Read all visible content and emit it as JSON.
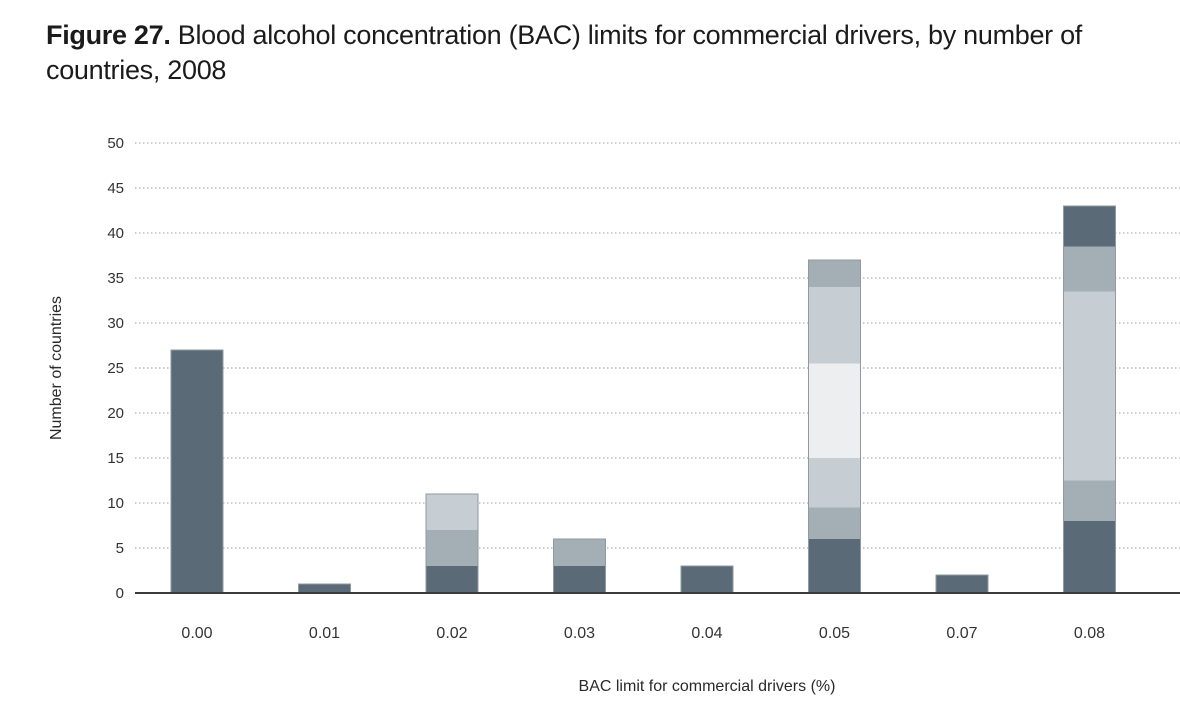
{
  "figure": {
    "label": "Figure 27.",
    "title_line1": " Blood alcohol concentration (BAC) limits for commercial drivers, by number of",
    "title_line2": "countries, 2008"
  },
  "chart_data": {
    "type": "bar",
    "stacked": true,
    "xlabel": "BAC limit for commercial drivers (%)",
    "ylabel": "Number of countries",
    "ylim": [
      0,
      50
    ],
    "yticks": [
      0,
      5,
      10,
      15,
      20,
      25,
      30,
      35,
      40,
      45,
      50
    ],
    "grid": true,
    "legend": "none",
    "categories": [
      "0.00",
      "0.01",
      "0.02",
      "0.03",
      "0.04",
      "0.05",
      "0.07",
      "0.08"
    ],
    "series": [
      {
        "color": "#5a6b77",
        "values": [
          27,
          1,
          3,
          3,
          3,
          6,
          2,
          8
        ]
      },
      {
        "color": "#a3aeb5",
        "values": [
          0,
          0,
          4,
          3,
          0,
          3.5,
          0,
          4.5
        ]
      },
      {
        "color": "#c7ced3",
        "values": [
          0,
          0,
          4,
          0,
          0,
          5.5,
          0,
          21
        ]
      },
      {
        "color": "#eceef0",
        "values": [
          0,
          0,
          0,
          0,
          0,
          10.5,
          0,
          0
        ]
      },
      {
        "color": "#c7ced3",
        "values": [
          0,
          0,
          0,
          0,
          0,
          8.5,
          0,
          0
        ]
      },
      {
        "color": "#a3aeb5",
        "values": [
          0,
          0,
          0,
          0,
          0,
          3,
          0,
          5
        ]
      },
      {
        "color": "#5a6b77",
        "values": [
          0,
          0,
          0,
          0,
          0,
          0,
          0,
          4.5
        ]
      }
    ]
  }
}
